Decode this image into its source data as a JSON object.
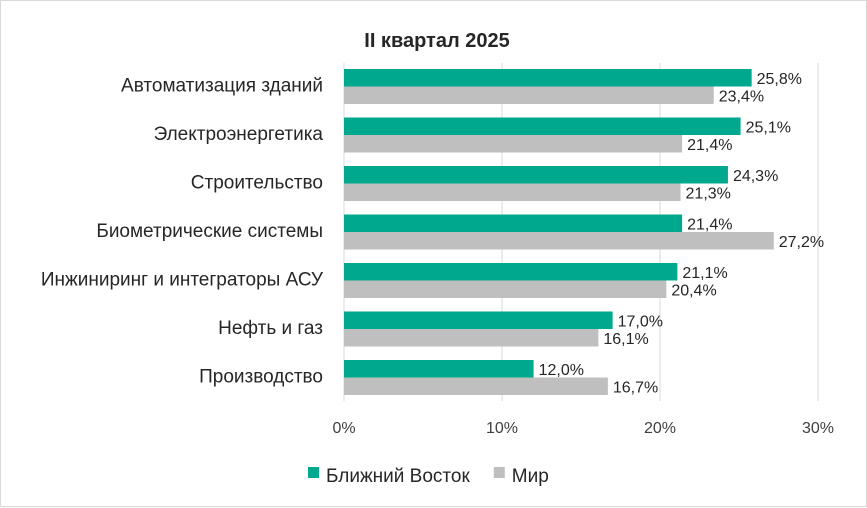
{
  "chart_data": {
    "type": "bar",
    "orientation": "horizontal",
    "title": "II квартал 2025",
    "categories": [
      "Автоматизация зданий",
      "Электроэнергетика",
      "Строительство",
      "Биометрические системы",
      "Инжиниринг и интеграторы АСУ",
      "Нефть и газ",
      "Производство"
    ],
    "series": [
      {
        "name": "Ближний Восток",
        "color": "#00a88e",
        "values": [
          25.8,
          25.1,
          24.3,
          21.4,
          21.1,
          17.0,
          12.0
        ],
        "labels": [
          "25,8%",
          "25,1%",
          "24,3%",
          "21,4%",
          "21,1%",
          "17,0%",
          "12,0%"
        ]
      },
      {
        "name": "Мир",
        "color": "#bfbfbf",
        "values": [
          23.4,
          21.4,
          21.3,
          27.2,
          20.4,
          16.1,
          16.7
        ],
        "labels": [
          "23,4%",
          "21,4%",
          "21,3%",
          "27,2%",
          "20,4%",
          "16,1%",
          "16,7%"
        ]
      }
    ],
    "xlim": [
      0,
      30
    ],
    "ticks": [
      0,
      10,
      20,
      30
    ],
    "tick_labels": [
      "0%",
      "10%",
      "20%",
      "30%"
    ],
    "grid": true,
    "legend": "bottom"
  }
}
